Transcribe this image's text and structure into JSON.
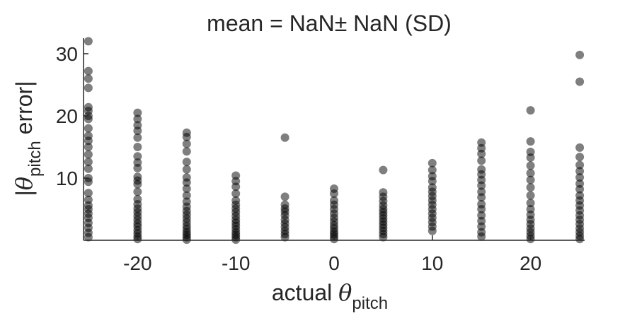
{
  "chart_data": {
    "type": "scatter",
    "title": "mean = NaN± NaN (SD)",
    "xlabel": {
      "prefix": "actual ",
      "symbol": "θ",
      "subscript": "pitch"
    },
    "ylabel": {
      "open": "|",
      "symbol": "θ",
      "subscript": "pitch",
      "suffix": " error|"
    },
    "xlim": [
      -25.5,
      25.5
    ],
    "ylim": [
      0,
      32.5
    ],
    "xticks": [
      -20,
      -10,
      0,
      10,
      20
    ],
    "xtick_labels": [
      "-20",
      "-10",
      "0",
      "10",
      "20"
    ],
    "yticks": [
      10,
      20,
      30
    ],
    "ytick_labels": [
      "10",
      "20",
      "30"
    ],
    "grid": false,
    "legend": "none",
    "marker_color": "#000000",
    "marker_alpha": 0.5,
    "axis_color": "#262626",
    "points": [
      [
        -25,
        0.5
      ],
      [
        -25,
        1.2
      ],
      [
        -25,
        2
      ],
      [
        -25,
        2.8
      ],
      [
        -25,
        3.6
      ],
      [
        -25,
        4.3
      ],
      [
        -25,
        5
      ],
      [
        -25,
        5.6
      ],
      [
        -25,
        6.5
      ],
      [
        -25,
        7.6
      ],
      [
        -25,
        9.4
      ],
      [
        -25,
        10
      ],
      [
        -25,
        11.5
      ],
      [
        -25,
        12.6
      ],
      [
        -25,
        13.8
      ],
      [
        -25,
        15
      ],
      [
        -25,
        16
      ],
      [
        -25,
        16.8
      ],
      [
        -25,
        18
      ],
      [
        -25,
        19.5
      ],
      [
        -25,
        20
      ],
      [
        -25,
        20.8
      ],
      [
        -25,
        21.4
      ],
      [
        -25,
        24.5
      ],
      [
        -25,
        26
      ],
      [
        -25,
        27.2
      ],
      [
        -25,
        32
      ],
      [
        -20,
        0.2
      ],
      [
        -20,
        0.6
      ],
      [
        -20,
        1.1
      ],
      [
        -20,
        1.6
      ],
      [
        -20,
        2.2
      ],
      [
        -20,
        2.7
      ],
      [
        -20,
        3.3
      ],
      [
        -20,
        3.9
      ],
      [
        -20,
        4.5
      ],
      [
        -20,
        5.1
      ],
      [
        -20,
        5.8
      ],
      [
        -20,
        6.6
      ],
      [
        -20,
        7.8
      ],
      [
        -20,
        9
      ],
      [
        -20,
        9.6
      ],
      [
        -20,
        10.2
      ],
      [
        -20,
        11.6
      ],
      [
        -20,
        12.5
      ],
      [
        -20,
        13.5
      ],
      [
        -20,
        15
      ],
      [
        -20,
        16.5
      ],
      [
        -20,
        17.6
      ],
      [
        -20,
        18.5
      ],
      [
        -20,
        19.5
      ],
      [
        -20,
        20.5
      ],
      [
        -15,
        0.1
      ],
      [
        -15,
        0.5
      ],
      [
        -15,
        0.9
      ],
      [
        -15,
        1.3
      ],
      [
        -15,
        1.8
      ],
      [
        -15,
        2.3
      ],
      [
        -15,
        2.9
      ],
      [
        -15,
        3.5
      ],
      [
        -15,
        4.1
      ],
      [
        -15,
        4.7
      ],
      [
        -15,
        5.4
      ],
      [
        -15,
        6.2
      ],
      [
        -15,
        7.2
      ],
      [
        -15,
        8.3
      ],
      [
        -15,
        9.3
      ],
      [
        -15,
        10.1
      ],
      [
        -15,
        11.4
      ],
      [
        -15,
        12.6
      ],
      [
        -15,
        14.3
      ],
      [
        -15,
        15.5
      ],
      [
        -15,
        16.6
      ],
      [
        -15,
        17.3
      ],
      [
        -10,
        0.1
      ],
      [
        -10,
        0.5
      ],
      [
        -10,
        0.9
      ],
      [
        -10,
        1.3
      ],
      [
        -10,
        1.8
      ],
      [
        -10,
        2.3
      ],
      [
        -10,
        2.8
      ],
      [
        -10,
        3.3
      ],
      [
        -10,
        3.9
      ],
      [
        -10,
        4.5
      ],
      [
        -10,
        5.1
      ],
      [
        -10,
        5.7
      ],
      [
        -10,
        6.4
      ],
      [
        -10,
        7.5
      ],
      [
        -10,
        8.6
      ],
      [
        -10,
        9.5
      ],
      [
        -10,
        10.4
      ],
      [
        -5,
        0.5
      ],
      [
        -5,
        1
      ],
      [
        -5,
        1.5
      ],
      [
        -5,
        2.1
      ],
      [
        -5,
        2.7
      ],
      [
        -5,
        3.3
      ],
      [
        -5,
        4
      ],
      [
        -5,
        4.6
      ],
      [
        -5,
        5.1
      ],
      [
        -5,
        5.7
      ],
      [
        -5,
        7
      ],
      [
        -5,
        16.5
      ],
      [
        0,
        0.2
      ],
      [
        0,
        0.6
      ],
      [
        0,
        1
      ],
      [
        0,
        1.4
      ],
      [
        0,
        1.9
      ],
      [
        0,
        2.4
      ],
      [
        0,
        3
      ],
      [
        0,
        3.6
      ],
      [
        0,
        4.3
      ],
      [
        0,
        5
      ],
      [
        0,
        5.7
      ],
      [
        0,
        6.4
      ],
      [
        0,
        7.5
      ],
      [
        0,
        8.3
      ],
      [
        5,
        0.5
      ],
      [
        5,
        1
      ],
      [
        5,
        1.5
      ],
      [
        5,
        2
      ],
      [
        5,
        2.5
      ],
      [
        5,
        3
      ],
      [
        5,
        3.5
      ],
      [
        5,
        4
      ],
      [
        5,
        4.5
      ],
      [
        5,
        5
      ],
      [
        5,
        5.6
      ],
      [
        5,
        6.3
      ],
      [
        5,
        7
      ],
      [
        5,
        7.7
      ],
      [
        5,
        11.3
      ],
      [
        10,
        1.5
      ],
      [
        10,
        2.2
      ],
      [
        10,
        2.9
      ],
      [
        10,
        3.6
      ],
      [
        10,
        4.3
      ],
      [
        10,
        5
      ],
      [
        10,
        5.7
      ],
      [
        10,
        6.4
      ],
      [
        10,
        7.1
      ],
      [
        10,
        7.8
      ],
      [
        10,
        8.5
      ],
      [
        10,
        9.5
      ],
      [
        10,
        10.3
      ],
      [
        10,
        11.3
      ],
      [
        10,
        12.4
      ],
      [
        15,
        0.6
      ],
      [
        15,
        1.3
      ],
      [
        15,
        2.2
      ],
      [
        15,
        3.1
      ],
      [
        15,
        4
      ],
      [
        15,
        5
      ],
      [
        15,
        5.8
      ],
      [
        15,
        6.9
      ],
      [
        15,
        7.8
      ],
      [
        15,
        8.8
      ],
      [
        15,
        9.7
      ],
      [
        15,
        10.6
      ],
      [
        15,
        11.4
      ],
      [
        15,
        12.8
      ],
      [
        15,
        13.9
      ],
      [
        15,
        14.8
      ],
      [
        15,
        15.7
      ],
      [
        20,
        0.2
      ],
      [
        20,
        0.7
      ],
      [
        20,
        1.3
      ],
      [
        20,
        1.9
      ],
      [
        20,
        2.6
      ],
      [
        20,
        3.3
      ],
      [
        20,
        4.1
      ],
      [
        20,
        5
      ],
      [
        20,
        6
      ],
      [
        20,
        7.2
      ],
      [
        20,
        8.5
      ],
      [
        20,
        9.7
      ],
      [
        20,
        10.8
      ],
      [
        20,
        12
      ],
      [
        20,
        13.3
      ],
      [
        20,
        14.2
      ],
      [
        20,
        15.9
      ],
      [
        20,
        20.9
      ],
      [
        25,
        0.2
      ],
      [
        25,
        0.7
      ],
      [
        25,
        1.3
      ],
      [
        25,
        1.9
      ],
      [
        25,
        2.6
      ],
      [
        25,
        3.3
      ],
      [
        25,
        4
      ],
      [
        25,
        4.8
      ],
      [
        25,
        5.6
      ],
      [
        25,
        6.4
      ],
      [
        25,
        7.2
      ],
      [
        25,
        8.2
      ],
      [
        25,
        9.1
      ],
      [
        25,
        10.1
      ],
      [
        25,
        11.1
      ],
      [
        25,
        12.1
      ],
      [
        25,
        13.4
      ],
      [
        25,
        14.9
      ],
      [
        25,
        25.5
      ],
      [
        25,
        29.8
      ]
    ]
  }
}
